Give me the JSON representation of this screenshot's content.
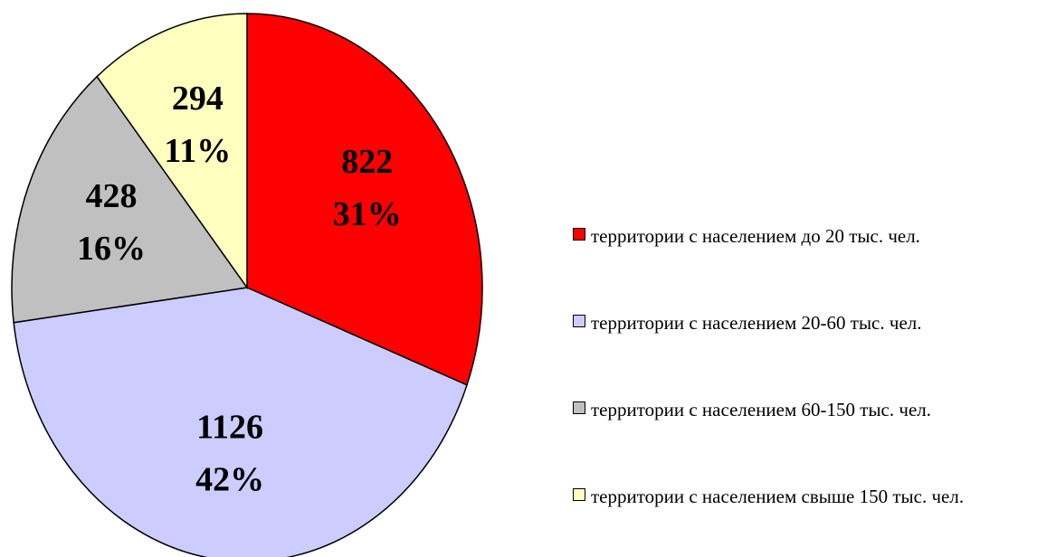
{
  "chart_data": {
    "type": "pie",
    "categories": [
      "территории с населением до 20 тыс. чел.",
      "территории с населением 20-60 тыс. чел.",
      "территории с населением 60-150 тыс. чел.",
      "территории с населением свыше 150 тыс. чел."
    ],
    "values": [
      822,
      1126,
      428,
      294
    ],
    "percent_labels": [
      "31%",
      "42%",
      "16%",
      "11%"
    ],
    "colors": [
      "#ff0000",
      "#ccccff",
      "#c0c0c0",
      "#ffffc0"
    ],
    "legend": "right"
  }
}
